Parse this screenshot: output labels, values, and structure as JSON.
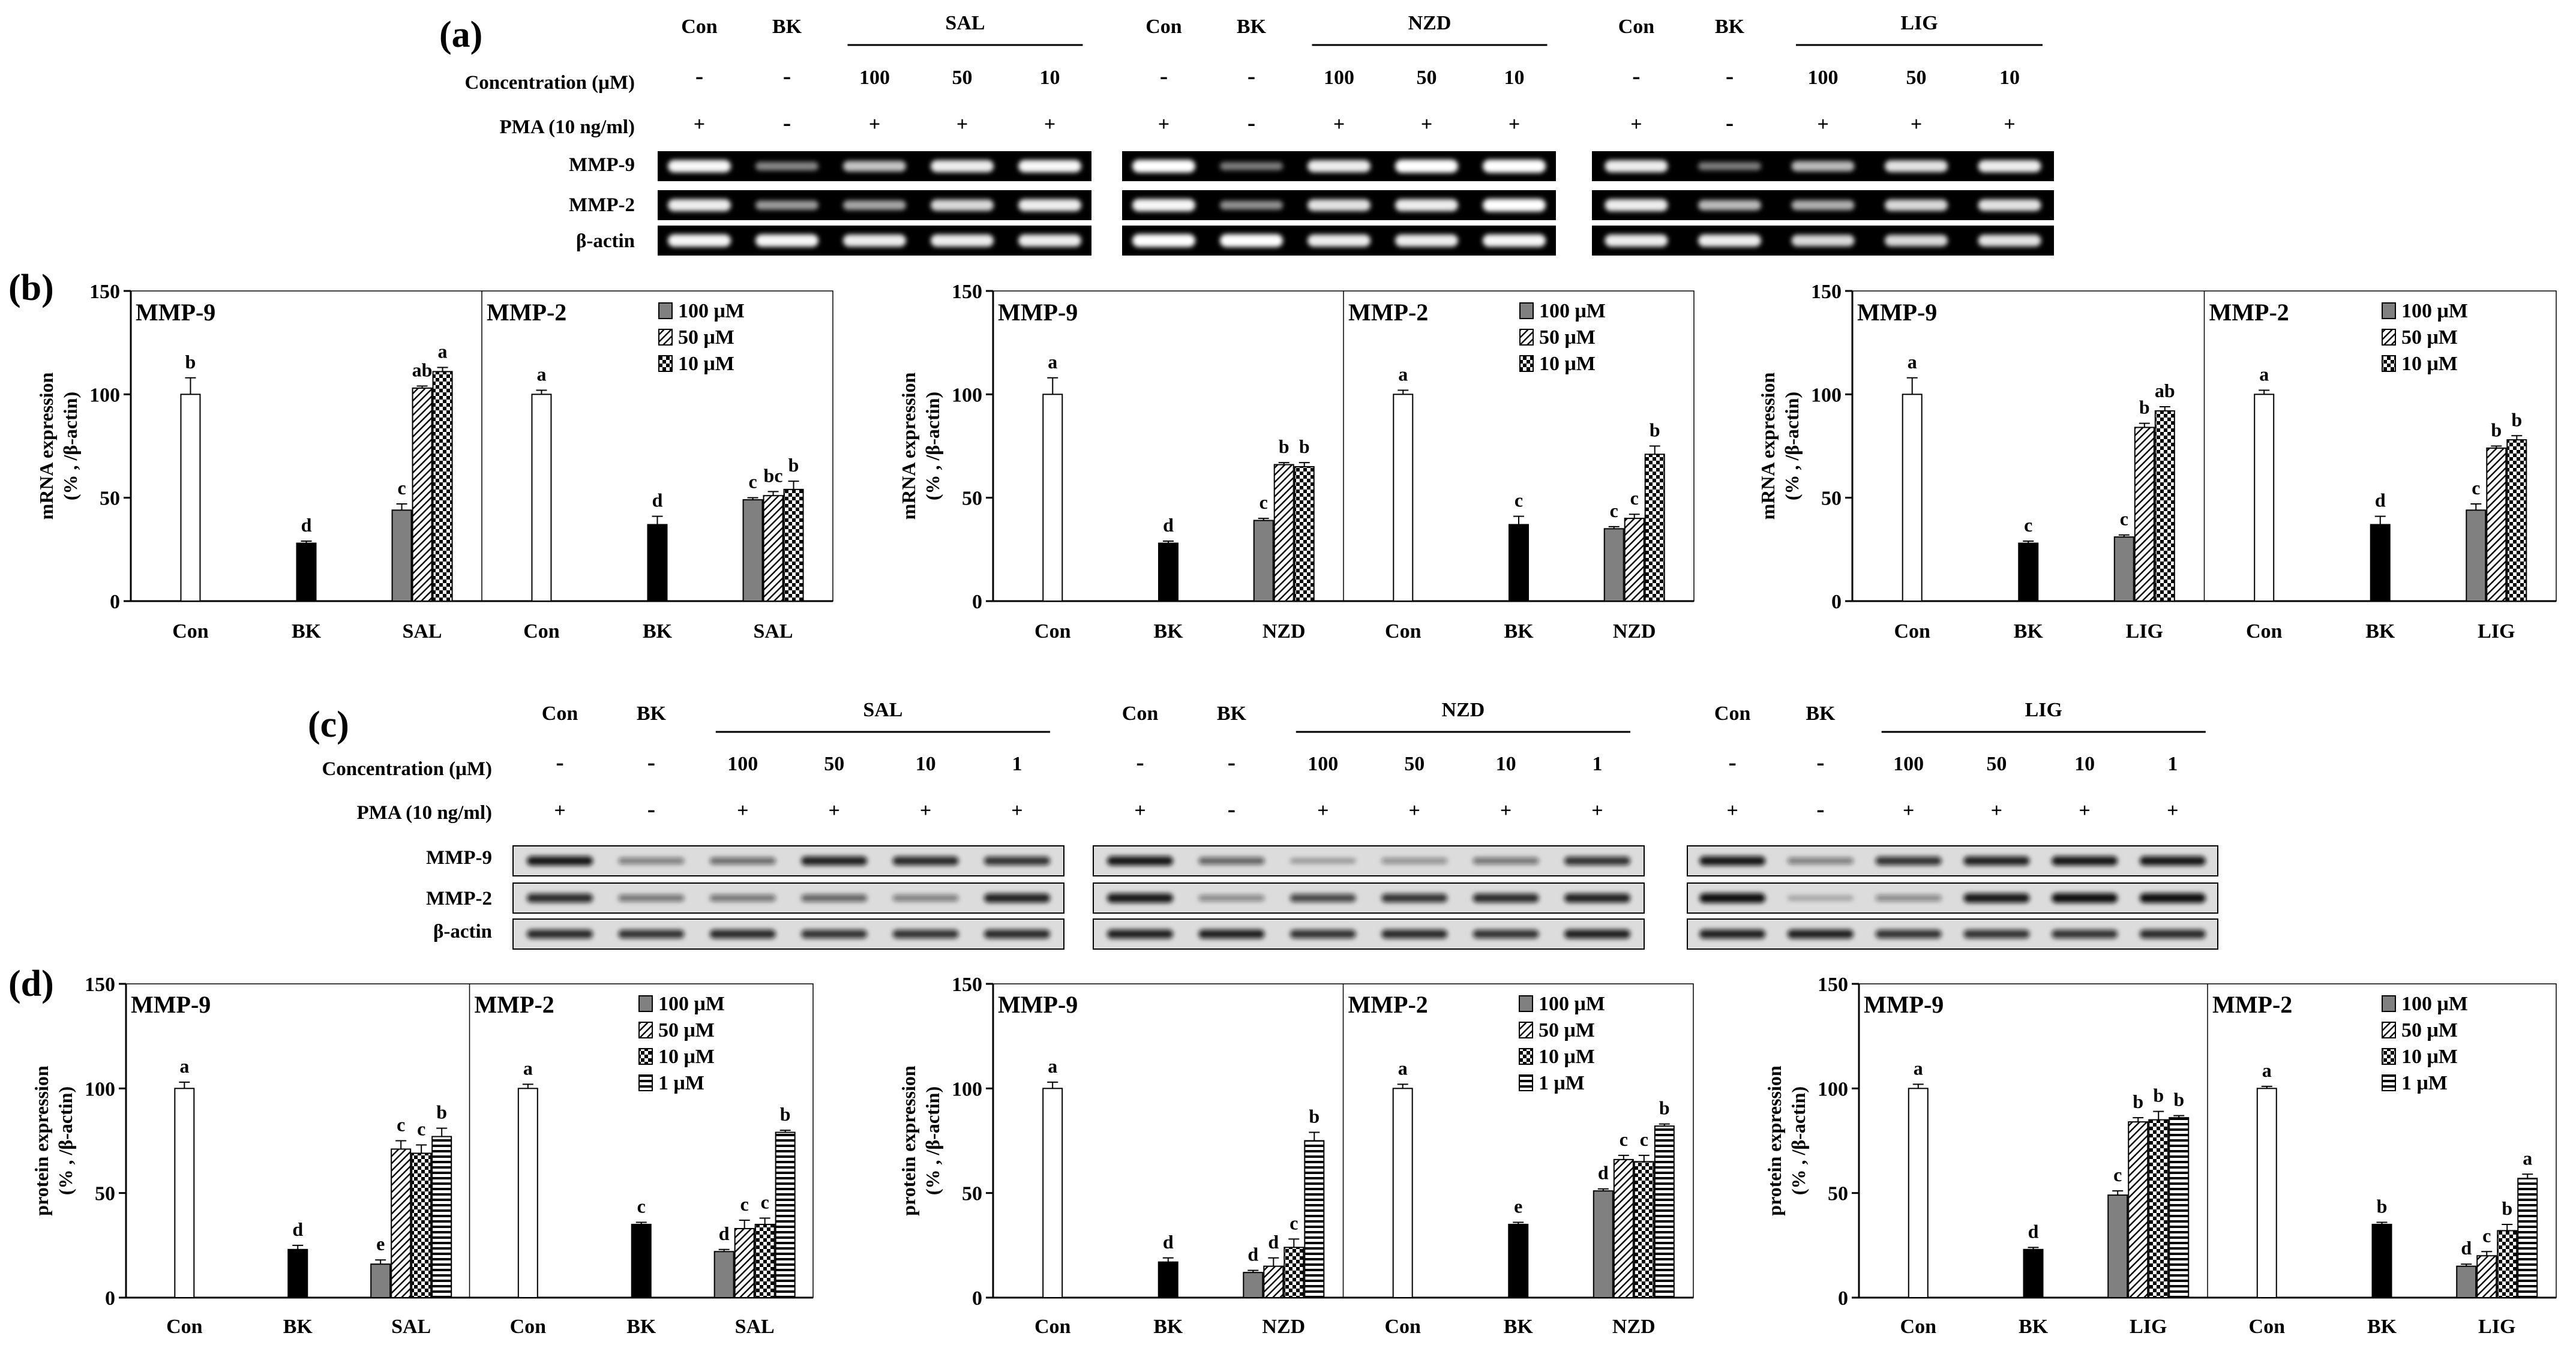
{
  "colors": {
    "background": "#ffffff",
    "ink": "#000000",
    "series_100": "#808080",
    "gel_bg": "#000000",
    "blot_bg": "#dcdcdc"
  },
  "panel_labels": {
    "a": "(a)",
    "b": "(b)",
    "c": "(c)",
    "d": "(d)"
  },
  "row_labels": {
    "concentration": "Concentration (μM)",
    "pma": "PMA (10 ng/ml)",
    "mmp9": "MMP-9",
    "mmp2": "MMP-2",
    "actin": "β-actin"
  },
  "marks": {
    "minus": "-",
    "plus": "+"
  },
  "lane_headers": {
    "con": "Con",
    "bk": "BK"
  },
  "panel_a_groups": [
    {
      "drug": "SAL",
      "concs": [
        "100",
        "50",
        "10"
      ]
    },
    {
      "drug": "NZD",
      "concs": [
        "100",
        "50",
        "10"
      ]
    },
    {
      "drug": "LIG",
      "concs": [
        "100",
        "50",
        "10"
      ]
    }
  ],
  "panel_c_groups": [
    {
      "drug": "SAL",
      "concs": [
        "100",
        "50",
        "10",
        "1"
      ]
    },
    {
      "drug": "NZD",
      "concs": [
        "100",
        "50",
        "10",
        "1"
      ]
    },
    {
      "drug": "LIG",
      "concs": [
        "100",
        "50",
        "10",
        "1"
      ]
    }
  ],
  "legend_b": [
    "100 μM",
    "50 μM",
    "10 μM"
  ],
  "legend_d": [
    "100 μM",
    "50 μM",
    "10 μM",
    "1 μM"
  ],
  "chart_data": [
    {
      "type": "bar",
      "row": "b",
      "drug": "SAL",
      "ylabel": [
        "mRNA expression",
        "(% , /β-actin)"
      ],
      "ylim": [
        0,
        150
      ],
      "yticks": [
        0,
        50,
        100,
        150
      ],
      "categories": [
        "Con",
        "BK",
        "SAL"
      ],
      "subpanels": [
        {
          "title": "MMP-9",
          "con": {
            "v": 100,
            "e": 8,
            "l": "b"
          },
          "bk": {
            "v": 28,
            "e": 1,
            "l": "d"
          },
          "drug": [
            {
              "v": 44,
              "e": 3,
              "l": "c"
            },
            {
              "v": 103,
              "e": 1,
              "l": "ab"
            },
            {
              "v": 111,
              "e": 2,
              "l": "a"
            }
          ]
        },
        {
          "title": "MMP-2",
          "con": {
            "v": 100,
            "e": 2,
            "l": "a"
          },
          "bk": {
            "v": 37,
            "e": 4,
            "l": "d"
          },
          "drug": [
            {
              "v": 49,
              "e": 1,
              "l": "c"
            },
            {
              "v": 51,
              "e": 2,
              "l": "bc"
            },
            {
              "v": 54,
              "e": 4,
              "l": "b"
            }
          ]
        }
      ]
    },
    {
      "type": "bar",
      "row": "b",
      "drug": "NZD",
      "ylabel": [
        "mRNA expression",
        "(% , /β-actin)"
      ],
      "ylim": [
        0,
        150
      ],
      "yticks": [
        0,
        50,
        100,
        150
      ],
      "categories": [
        "Con",
        "BK",
        "NZD"
      ],
      "subpanels": [
        {
          "title": "MMP-9",
          "con": {
            "v": 100,
            "e": 8,
            "l": "a"
          },
          "bk": {
            "v": 28,
            "e": 1,
            "l": "d"
          },
          "drug": [
            {
              "v": 39,
              "e": 1,
              "l": "c"
            },
            {
              "v": 66,
              "e": 1,
              "l": "b"
            },
            {
              "v": 65,
              "e": 2,
              "l": "b"
            }
          ]
        },
        {
          "title": "MMP-2",
          "con": {
            "v": 100,
            "e": 2,
            "l": "a"
          },
          "bk": {
            "v": 37,
            "e": 4,
            "l": "c"
          },
          "drug": [
            {
              "v": 35,
              "e": 1,
              "l": "c"
            },
            {
              "v": 40,
              "e": 2,
              "l": "c"
            },
            {
              "v": 71,
              "e": 4,
              "l": "b"
            }
          ]
        }
      ]
    },
    {
      "type": "bar",
      "row": "b",
      "drug": "LIG",
      "ylabel": [
        "mRNA expression",
        "(% , /β-actin)"
      ],
      "ylim": [
        0,
        150
      ],
      "yticks": [
        0,
        50,
        100,
        150
      ],
      "categories": [
        "Con",
        "BK",
        "LIG"
      ],
      "subpanels": [
        {
          "title": "MMP-9",
          "con": {
            "v": 100,
            "e": 8,
            "l": "a"
          },
          "bk": {
            "v": 28,
            "e": 1,
            "l": "c"
          },
          "drug": [
            {
              "v": 31,
              "e": 1,
              "l": "c"
            },
            {
              "v": 84,
              "e": 2,
              "l": "b"
            },
            {
              "v": 92,
              "e": 2,
              "l": "ab"
            }
          ]
        },
        {
          "title": "MMP-2",
          "con": {
            "v": 100,
            "e": 2,
            "l": "a"
          },
          "bk": {
            "v": 37,
            "e": 4,
            "l": "d"
          },
          "drug": [
            {
              "v": 44,
              "e": 3,
              "l": "c"
            },
            {
              "v": 74,
              "e": 1,
              "l": "b"
            },
            {
              "v": 78,
              "e": 2,
              "l": "b"
            }
          ]
        }
      ]
    },
    {
      "type": "bar",
      "row": "d",
      "drug": "SAL",
      "ylabel": [
        "protein expression",
        "(% , /β-actin)"
      ],
      "ylim": [
        0,
        150
      ],
      "yticks": [
        0,
        50,
        100,
        150
      ],
      "categories": [
        "Con",
        "BK",
        "SAL"
      ],
      "subpanels": [
        {
          "title": "MMP-9",
          "con": {
            "v": 100,
            "e": 3,
            "l": "a"
          },
          "bk": {
            "v": 23,
            "e": 2,
            "l": "d"
          },
          "drug": [
            {
              "v": 16,
              "e": 2,
              "l": "e"
            },
            {
              "v": 71,
              "e": 4,
              "l": "c"
            },
            {
              "v": 69,
              "e": 4,
              "l": "c"
            },
            {
              "v": 77,
              "e": 4,
              "l": "b"
            }
          ]
        },
        {
          "title": "MMP-2",
          "con": {
            "v": 100,
            "e": 2,
            "l": "a"
          },
          "bk": {
            "v": 35,
            "e": 1,
            "l": "c"
          },
          "drug": [
            {
              "v": 22,
              "e": 1,
              "l": "d"
            },
            {
              "v": 33,
              "e": 4,
              "l": "c"
            },
            {
              "v": 35,
              "e": 3,
              "l": "c"
            },
            {
              "v": 79,
              "e": 1,
              "l": "b"
            }
          ]
        }
      ]
    },
    {
      "type": "bar",
      "row": "d",
      "drug": "NZD",
      "ylabel": [
        "protein expression",
        "(% , /β-actin)"
      ],
      "ylim": [
        0,
        150
      ],
      "yticks": [
        0,
        50,
        100,
        150
      ],
      "categories": [
        "Con",
        "BK",
        "NZD"
      ],
      "subpanels": [
        {
          "title": "MMP-9",
          "con": {
            "v": 100,
            "e": 3,
            "l": "a"
          },
          "bk": {
            "v": 17,
            "e": 2,
            "l": "d"
          },
          "drug": [
            {
              "v": 12,
              "e": 1,
              "l": "d"
            },
            {
              "v": 15,
              "e": 4,
              "l": "d"
            },
            {
              "v": 24,
              "e": 4,
              "l": "c"
            },
            {
              "v": 75,
              "e": 4,
              "l": "b"
            }
          ]
        },
        {
          "title": "MMP-2",
          "con": {
            "v": 100,
            "e": 2,
            "l": "a"
          },
          "bk": {
            "v": 35,
            "e": 1,
            "l": "e"
          },
          "drug": [
            {
              "v": 51,
              "e": 1,
              "l": "d"
            },
            {
              "v": 66,
              "e": 2,
              "l": "c"
            },
            {
              "v": 65,
              "e": 3,
              "l": "c"
            },
            {
              "v": 82,
              "e": 1,
              "l": "b"
            }
          ]
        }
      ]
    },
    {
      "type": "bar",
      "row": "d",
      "drug": "LIG",
      "ylabel": [
        "protein expression",
        "(% , /β-actin)"
      ],
      "ylim": [
        0,
        150
      ],
      "yticks": [
        0,
        50,
        100,
        150
      ],
      "categories": [
        "Con",
        "BK",
        "LIG"
      ],
      "subpanels": [
        {
          "title": "MMP-9",
          "con": {
            "v": 100,
            "e": 2,
            "l": "a"
          },
          "bk": {
            "v": 23,
            "e": 1,
            "l": "d"
          },
          "drug": [
            {
              "v": 49,
              "e": 2,
              "l": "c"
            },
            {
              "v": 84,
              "e": 2,
              "l": "b"
            },
            {
              "v": 85,
              "e": 4,
              "l": "b"
            },
            {
              "v": 86,
              "e": 1,
              "l": "b"
            }
          ]
        },
        {
          "title": "MMP-2",
          "con": {
            "v": 100,
            "e": 1,
            "l": "a"
          },
          "bk": {
            "v": 35,
            "e": 1,
            "l": "b"
          },
          "drug": [
            {
              "v": 15,
              "e": 1,
              "l": "d"
            },
            {
              "v": 20,
              "e": 2,
              "l": "c"
            },
            {
              "v": 32,
              "e": 3,
              "l": "b"
            },
            {
              "v": 57,
              "e": 2,
              "l": "a"
            }
          ]
        }
      ]
    }
  ],
  "gels_a": [
    {
      "drug": "SAL",
      "rows": [
        [
          0.9,
          0.35,
          0.65,
          0.85,
          0.9
        ],
        [
          0.85,
          0.45,
          0.5,
          0.75,
          0.85
        ],
        [
          0.9,
          0.9,
          0.85,
          0.85,
          0.85
        ]
      ]
    },
    {
      "drug": "NZD",
      "rows": [
        [
          0.95,
          0.3,
          0.85,
          1.0,
          1.0
        ],
        [
          0.9,
          0.4,
          0.8,
          0.85,
          0.95
        ],
        [
          0.95,
          0.95,
          0.85,
          0.85,
          0.9
        ]
      ]
    },
    {
      "drug": "LIG",
      "rows": [
        [
          0.85,
          0.3,
          0.6,
          0.8,
          0.85
        ],
        [
          0.85,
          0.6,
          0.55,
          0.75,
          0.8
        ],
        [
          0.85,
          0.85,
          0.75,
          0.75,
          0.8
        ]
      ]
    }
  ],
  "blots_c": [
    {
      "drug": "SAL",
      "rows": [
        [
          0.95,
          0.4,
          0.5,
          0.9,
          0.85,
          0.8
        ],
        [
          0.85,
          0.45,
          0.45,
          0.55,
          0.4,
          0.9
        ],
        [
          0.85,
          0.8,
          0.85,
          0.8,
          0.8,
          0.85
        ]
      ]
    },
    {
      "drug": "NZD",
      "rows": [
        [
          0.95,
          0.55,
          0.2,
          0.3,
          0.45,
          0.8
        ],
        [
          0.95,
          0.35,
          0.7,
          0.8,
          0.85,
          0.9
        ],
        [
          0.9,
          0.9,
          0.8,
          0.85,
          0.8,
          0.9
        ]
      ]
    },
    {
      "drug": "LIG",
      "rows": [
        [
          0.95,
          0.4,
          0.8,
          0.9,
          0.95,
          0.95
        ],
        [
          1.0,
          0.15,
          0.35,
          0.95,
          1.0,
          1.0
        ],
        [
          0.9,
          0.9,
          0.8,
          0.8,
          0.8,
          0.85
        ]
      ]
    }
  ]
}
